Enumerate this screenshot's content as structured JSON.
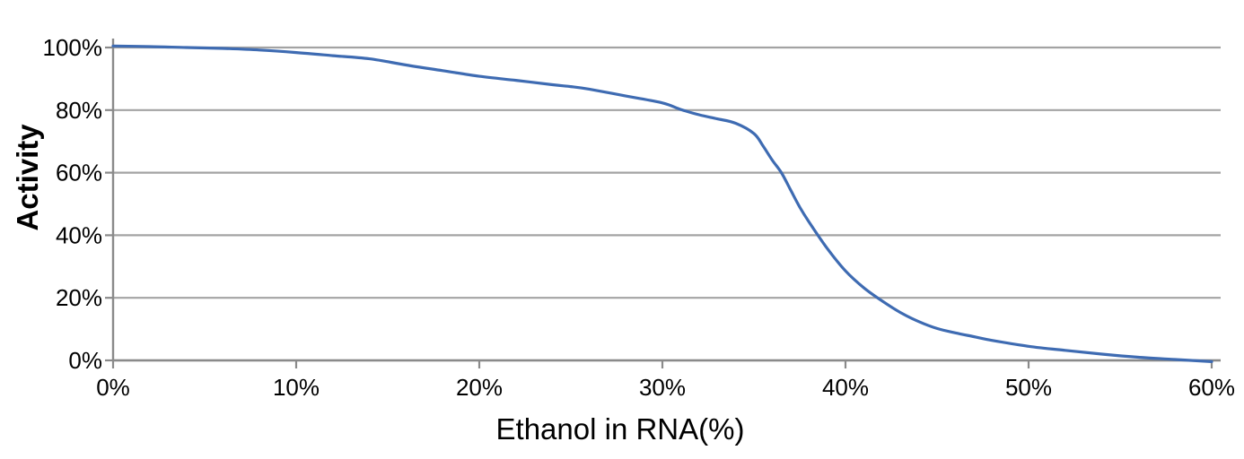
{
  "chart_data": {
    "type": "line",
    "title": "",
    "xlabel": "Ethanol in RNA(%)",
    "ylabel": "Activity",
    "xlim": [
      0,
      60
    ],
    "ylim": [
      0,
      100
    ],
    "x_tick_values": [
      0,
      10,
      20,
      30,
      40,
      50,
      60
    ],
    "x_tick_labels": [
      "0%",
      "10%",
      "20%",
      "30%",
      "40%",
      "50%",
      "60%"
    ],
    "y_tick_values": [
      0,
      20,
      40,
      60,
      80,
      100
    ],
    "y_tick_labels": [
      "0%",
      "20%",
      "40%",
      "60%",
      "80%",
      "100%"
    ],
    "grid": "horizontal-only",
    "legend_position": "none",
    "markers": "none",
    "series": [
      {
        "name": "Activity",
        "color": "#3e6bb2",
        "x": [
          0,
          2,
          4,
          6,
          8,
          10,
          12,
          14,
          16,
          18,
          20,
          22,
          24,
          25,
          26,
          28,
          30,
          31,
          32,
          33,
          34,
          35,
          35.5,
          36,
          36.5,
          37,
          37.5,
          38,
          39,
          40,
          41,
          42,
          43,
          44,
          45,
          46,
          47,
          48,
          50,
          52,
          54,
          56,
          58,
          60
        ],
        "y": [
          100.5,
          100.3,
          100,
          99.7,
          99.2,
          98.4,
          97.4,
          96.4,
          94.4,
          92.6,
          90.8,
          89.5,
          88.1,
          87.5,
          86.7,
          84.5,
          82.3,
          80.2,
          78.5,
          77.2,
          75.8,
          72.5,
          68.5,
          64,
          60,
          54.5,
          49,
          44.3,
          35.8,
          28.6,
          23.2,
          19,
          15.3,
          12.4,
          10.2,
          8.8,
          7.6,
          6.4,
          4.5,
          3.2,
          2,
          1,
          0.3,
          -0.4
        ]
      }
    ]
  },
  "styles": {
    "background_color": "#ffffff",
    "gridline_color": "#a3a3a3",
    "axis_color": "#8a8a8a",
    "text_color": "#000000",
    "line_color": "#3e6bb2",
    "line_width": 3.2
  }
}
